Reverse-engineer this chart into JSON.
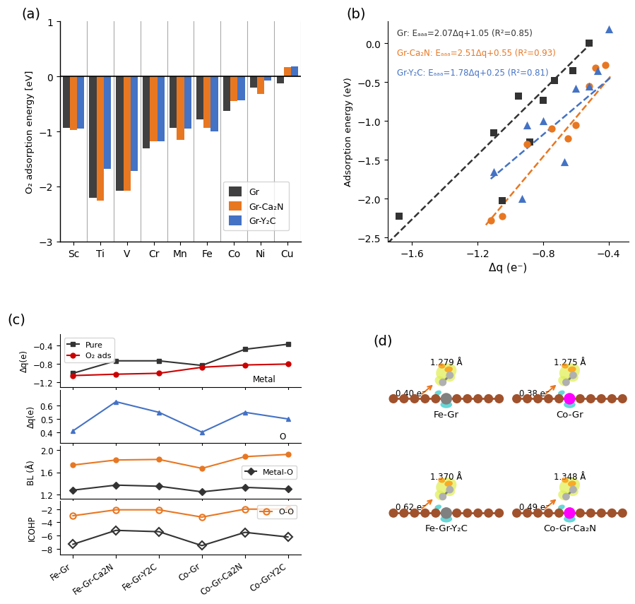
{
  "panel_a": {
    "metals": [
      "Sc",
      "Ti",
      "V",
      "Cr",
      "Mn",
      "Fe",
      "Co",
      "Ni",
      "Cu"
    ],
    "Gr": [
      -0.93,
      -2.2,
      -2.07,
      -1.3,
      -0.93,
      -0.78,
      -0.63,
      -0.2,
      -0.13
    ],
    "GrCa2N": [
      -0.97,
      -2.25,
      -2.08,
      -1.18,
      -1.15,
      -0.93,
      -0.45,
      -0.32,
      0.17
    ],
    "GrY2C": [
      -0.95,
      -1.68,
      -1.72,
      -1.18,
      -0.95,
      -1.0,
      -0.43,
      -0.08,
      0.18
    ],
    "ylim": [
      -3,
      1
    ],
    "yticks": [
      -3,
      -2,
      -1,
      0,
      1
    ],
    "ylabel": "O₂ adsorption energy [eV]",
    "color_Gr": "#404040",
    "color_GrCa2N": "#E87722",
    "color_GrY2C": "#4472C4",
    "legend_labels": [
      "Gr",
      "Gr-Ca₂N",
      "Gr-Y₂C"
    ]
  },
  "panel_b": {
    "Gr_x": [
      -1.68,
      -1.1,
      -1.05,
      -0.95,
      -0.88,
      -0.8,
      -0.73,
      -0.62,
      -0.52
    ],
    "Gr_y": [
      -2.22,
      -1.15,
      -2.02,
      -0.68,
      -1.27,
      -0.73,
      -0.48,
      -0.35,
      0.0
    ],
    "GrCa2N_x": [
      -1.12,
      -1.05,
      -0.9,
      -0.75,
      -0.65,
      -0.6,
      -0.52,
      -0.48,
      -0.42
    ],
    "GrCa2N_y": [
      -2.28,
      -2.22,
      -1.3,
      -1.1,
      -1.22,
      -1.05,
      -0.55,
      -0.32,
      -0.28
    ],
    "GrY2C_x": [
      -1.1,
      -0.93,
      -0.9,
      -0.8,
      -0.67,
      -0.6,
      -0.52,
      -0.47,
      -0.4
    ],
    "GrY2C_y": [
      -1.65,
      -2.0,
      -1.05,
      -1.0,
      -1.52,
      -0.58,
      -0.55,
      -0.35,
      0.18
    ],
    "fit_Gr_x0": -1.75,
    "fit_Gr_x1": -0.5,
    "fit_Gr_slope": 2.07,
    "fit_Gr_int": 1.05,
    "fit_GrCa2N_x0": -1.15,
    "fit_GrCa2N_x1": -0.38,
    "fit_GrCa2N_slope": 2.51,
    "fit_GrCa2N_int": 0.55,
    "fit_GrY2C_x0": -1.12,
    "fit_GrY2C_x1": -0.38,
    "fit_GrY2C_slope": 1.78,
    "fit_GrY2C_int": 0.25,
    "xlim": [
      -1.75,
      -0.28
    ],
    "ylim": [
      -2.55,
      0.28
    ],
    "xticks": [
      -1.6,
      -1.2,
      -0.8,
      -0.4
    ],
    "yticks": [
      0.0,
      -0.5,
      -1.0,
      -1.5,
      -2.0,
      -2.5
    ],
    "xlabel": "Δq (e⁻)",
    "ylabel": "Adsorption energy (eV)",
    "color_Gr": "#333333",
    "color_GrCa2N": "#E87722",
    "color_GrY2C": "#4472C4"
  },
  "panel_c": {
    "x_labels": [
      "Fe-Gr",
      "Fe-Gr-Ca2N",
      "Fe-Gr-Y2C",
      "Co-Gr",
      "Co-Gr-Ca2N",
      "Co-Gr-Y2C"
    ],
    "metal_pure_y": [
      -1.0,
      -0.73,
      -0.73,
      -0.83,
      -0.48,
      -0.37
    ],
    "metal_O2ads_y": [
      -1.05,
      -1.02,
      -1.0,
      -0.87,
      -0.82,
      -0.8
    ],
    "O_y": [
      0.41,
      0.63,
      0.55,
      0.4,
      0.55,
      0.5
    ],
    "BL_metal_O_y": [
      1.28,
      1.37,
      1.35,
      1.25,
      1.33,
      1.3
    ],
    "BL_OO_y": [
      1.73,
      1.82,
      1.83,
      1.67,
      1.88,
      1.92
    ],
    "ICOHP_metal_O_y": [
      -7.3,
      -5.2,
      -5.4,
      -7.5,
      -5.5,
      -6.2
    ],
    "ICOHP_OO_y": [
      -3.0,
      -2.1,
      -2.1,
      -3.2,
      -2.0,
      -2.0
    ],
    "color_metal_pure": "#333333",
    "color_metal_O2ads": "#CC0000",
    "color_O": "#4472C4",
    "color_BL_metal_O": "#333333",
    "color_BL_OO": "#E87722",
    "color_ICOHP_metal_O": "#333333",
    "color_ICOHP_OO": "#E87722"
  },
  "panel_d": {
    "labels": [
      "Fe-Gr",
      "Co-Gr",
      "Fe-Gr-Y₂C",
      "Co-Gr-Ca₂N"
    ],
    "bond_lengths": [
      "1.279 Å",
      "1.275 Å",
      "1.370 Å",
      "1.348 Å"
    ],
    "charges": [
      "0.40 e⁻",
      "0.38 e⁻",
      "0.62 e⁻",
      "0.49 e⁻"
    ]
  },
  "bg_color": "#ffffff"
}
